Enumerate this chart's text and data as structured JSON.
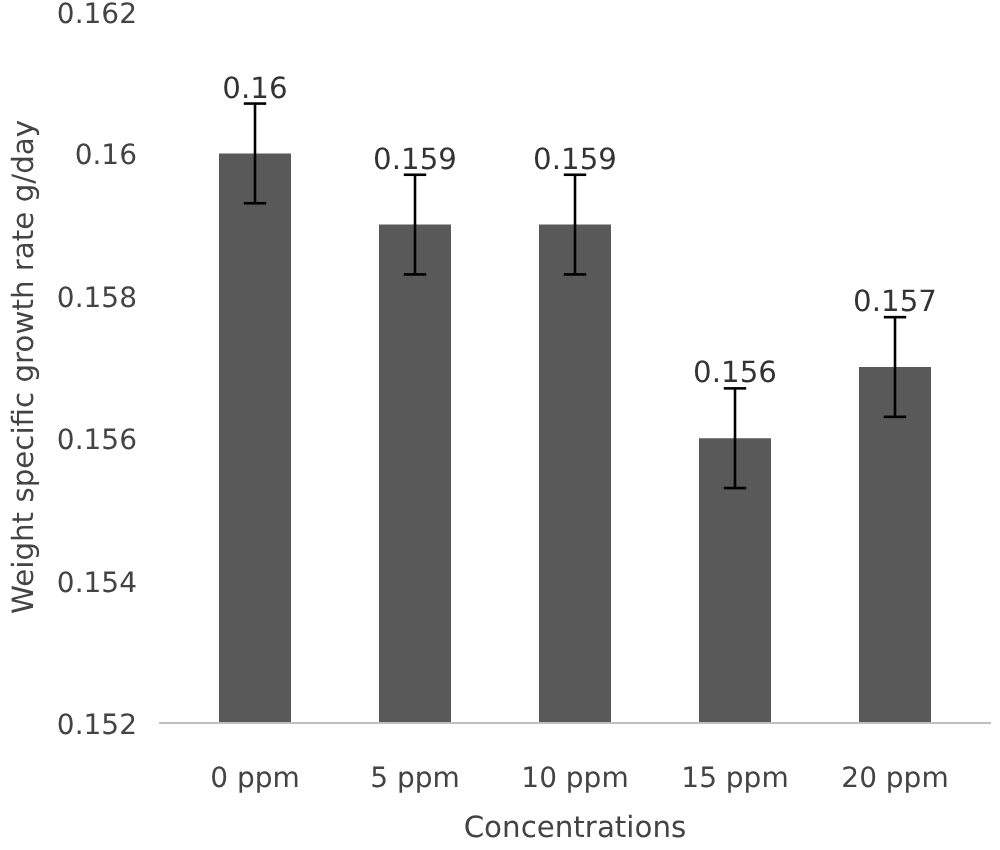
{
  "chart_data": {
    "type": "bar",
    "xlabel": "Concentrations",
    "ylabel": "Weight specific growth rate g/day",
    "categories": [
      "0 ppm",
      "5 ppm",
      "10 ppm",
      "15 ppm",
      "20 ppm"
    ],
    "values": [
      0.16,
      0.159,
      0.159,
      0.156,
      0.157
    ],
    "errors": [
      0.0007,
      0.0007,
      0.0007,
      0.0007,
      0.0007
    ],
    "color": "#595959",
    "ylim": [
      0.152,
      0.162
    ],
    "yticks": [
      0.152,
      0.154,
      0.156,
      0.158,
      0.16,
      0.162
    ],
    "data_labels": true,
    "grid": false
  }
}
